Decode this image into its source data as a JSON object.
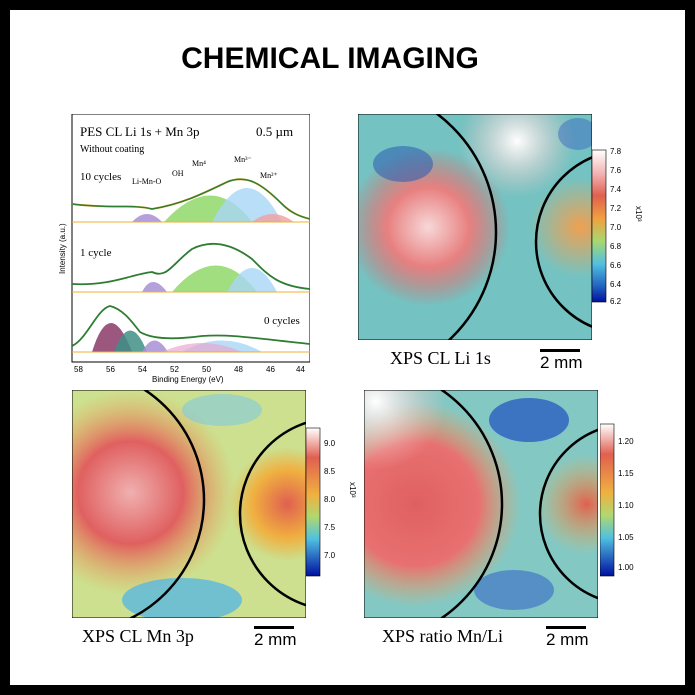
{
  "title": "CHEMICAL IMAGING",
  "spectrum": {
    "header": "PES CL Li 1s + Mn 3p",
    "resolution": "0.5 µm",
    "subtitle": "Without coating",
    "cycle_labels": [
      "10 cycles",
      "1 cycle",
      "0 cycles"
    ],
    "peak_labels": [
      "Li-Mn-O",
      "OH",
      "Mn⁴",
      "Mn³⁻",
      "Mn²⁺"
    ],
    "xlabel": "Binding Energy (eV)",
    "ylabel": "Intensity (a.u.)",
    "x_ticks": [
      "58",
      "56",
      "54",
      "52",
      "50",
      "48",
      "46",
      "44"
    ]
  },
  "maps": [
    {
      "caption": "XPS CL Li 1s",
      "scale": "2 mm",
      "exponent": "x10³",
      "ticks": [
        "7.8",
        "7.6",
        "7.4",
        "7.2",
        "7.0",
        "6.8",
        "6.6",
        "6.4",
        "6.2"
      ]
    },
    {
      "caption": "XPS CL Mn 3p",
      "scale": "2 mm",
      "exponent": "x10³",
      "ticks": [
        "9.0",
        "8.5",
        "8.0",
        "7.5",
        "7.0"
      ]
    },
    {
      "caption": "XPS ratio Mn/Li",
      "scale": "2 mm",
      "ticks": [
        "1.20",
        "1.15",
        "1.10",
        "1.05",
        "1.00"
      ]
    }
  ],
  "colors": {
    "background": "#000000",
    "panel": "#ffffff",
    "fit_line": "#2e7d32",
    "envelope": "#f0b030"
  }
}
